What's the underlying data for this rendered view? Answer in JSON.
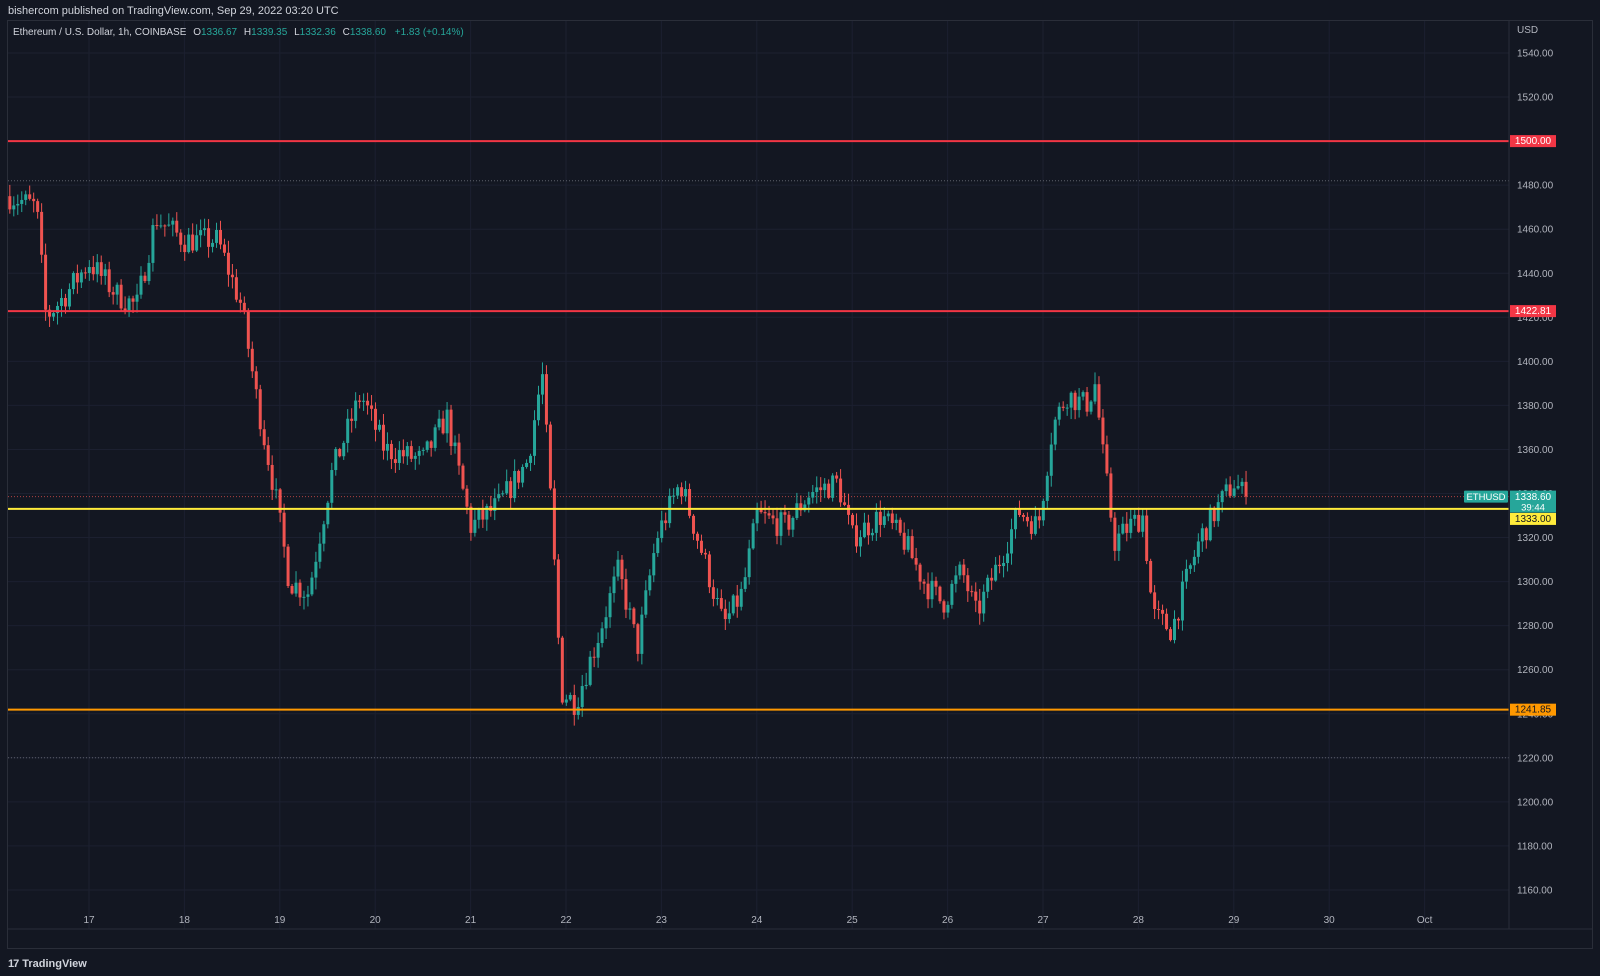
{
  "header": {
    "published": "bishercom published on TradingView.com, Sep 29, 2022 03:20 UTC"
  },
  "legend": {
    "symbol": "Ethereum / U.S. Dollar, 1h, COINBASE",
    "open_label": "O",
    "open": "1336.67",
    "high_label": "H",
    "high": "1339.35",
    "low_label": "L",
    "low": "1332.36",
    "close_label": "C",
    "close": "1338.60",
    "change": "+1.83 (+0.14%)"
  },
  "footer": {
    "brand": "TradingView",
    "logo_icon": "tradingview-logo-icon"
  },
  "colors": {
    "background": "#131722",
    "up": "#26a69a",
    "down": "#ef5350",
    "grid": "#1c2030",
    "text": "#b2b5be"
  },
  "chart_data": {
    "type": "candlestick",
    "currency": "USD",
    "ylim": [
      1145,
      1550
    ],
    "y_ticks": [
      1160,
      1180,
      1200,
      1220,
      1240,
      1260,
      1280,
      1300,
      1320,
      1340,
      1360,
      1380,
      1400,
      1420,
      1440,
      1460,
      1480,
      1500,
      1520,
      1540
    ],
    "x_ticks": [
      {
        "label": "17",
        "day": 17
      },
      {
        "label": "18",
        "day": 18
      },
      {
        "label": "19",
        "day": 19
      },
      {
        "label": "20",
        "day": 20
      },
      {
        "label": "21",
        "day": 21
      },
      {
        "label": "22",
        "day": 22
      },
      {
        "label": "23",
        "day": 23
      },
      {
        "label": "24",
        "day": 24
      },
      {
        "label": "25",
        "day": 25
      },
      {
        "label": "26",
        "day": 26
      },
      {
        "label": "27",
        "day": 27
      },
      {
        "label": "28",
        "day": 28
      },
      {
        "label": "29",
        "day": 29
      },
      {
        "label": "30",
        "day": 30
      },
      {
        "label": "Oct",
        "day": 31
      }
    ],
    "xlim_days": [
      16.16,
      32.0
    ],
    "horizontal_levels": [
      {
        "value": 1500.0,
        "label": "1500.00",
        "color": "#f23645"
      },
      {
        "value": 1422.81,
        "label": "1422.81",
        "color": "#f23645"
      },
      {
        "value": 1333.0,
        "label": "1333.00",
        "color": "#ffeb3b"
      },
      {
        "value": 1241.85,
        "label": "1241.85",
        "color": "#ff9800"
      }
    ],
    "range_lines": [
      1482,
      1220
    ],
    "last_price": {
      "symbol": "ETHUSD",
      "value": 1338.6,
      "label": "1338.60",
      "countdown": "39:44"
    },
    "price_path": [
      {
        "day": 16.17,
        "price": 1475
      },
      {
        "day": 16.45,
        "price": 1470
      },
      {
        "day": 16.55,
        "price": 1420
      },
      {
        "day": 16.75,
        "price": 1430
      },
      {
        "day": 17.0,
        "price": 1445
      },
      {
        "day": 17.3,
        "price": 1430
      },
      {
        "day": 17.5,
        "price": 1425
      },
      {
        "day": 17.7,
        "price": 1465
      },
      {
        "day": 18.0,
        "price": 1455
      },
      {
        "day": 18.35,
        "price": 1455
      },
      {
        "day": 18.6,
        "price": 1425
      },
      {
        "day": 18.75,
        "price": 1385
      },
      {
        "day": 18.95,
        "price": 1340
      },
      {
        "day": 19.1,
        "price": 1300
      },
      {
        "day": 19.3,
        "price": 1295
      },
      {
        "day": 19.55,
        "price": 1350
      },
      {
        "day": 19.85,
        "price": 1385
      },
      {
        "day": 20.1,
        "price": 1360
      },
      {
        "day": 20.5,
        "price": 1355
      },
      {
        "day": 20.75,
        "price": 1375
      },
      {
        "day": 21.0,
        "price": 1325
      },
      {
        "day": 21.3,
        "price": 1335
      },
      {
        "day": 21.6,
        "price": 1355
      },
      {
        "day": 21.75,
        "price": 1395
      },
      {
        "day": 21.85,
        "price": 1330
      },
      {
        "day": 21.95,
        "price": 1250
      },
      {
        "day": 22.1,
        "price": 1245
      },
      {
        "day": 22.3,
        "price": 1270
      },
      {
        "day": 22.55,
        "price": 1305
      },
      {
        "day": 22.75,
        "price": 1270
      },
      {
        "day": 22.95,
        "price": 1320
      },
      {
        "day": 23.2,
        "price": 1345
      },
      {
        "day": 23.45,
        "price": 1310
      },
      {
        "day": 23.65,
        "price": 1280
      },
      {
        "day": 23.85,
        "price": 1295
      },
      {
        "day": 24.0,
        "price": 1330
      },
      {
        "day": 24.3,
        "price": 1325
      },
      {
        "day": 24.55,
        "price": 1340
      },
      {
        "day": 24.85,
        "price": 1345
      },
      {
        "day": 25.0,
        "price": 1320
      },
      {
        "day": 25.3,
        "price": 1330
      },
      {
        "day": 25.55,
        "price": 1318
      },
      {
        "day": 25.75,
        "price": 1300
      },
      {
        "day": 25.95,
        "price": 1290
      },
      {
        "day": 26.15,
        "price": 1305
      },
      {
        "day": 26.3,
        "price": 1285
      },
      {
        "day": 26.55,
        "price": 1310
      },
      {
        "day": 26.75,
        "price": 1332
      },
      {
        "day": 26.95,
        "price": 1325
      },
      {
        "day": 27.1,
        "price": 1370
      },
      {
        "day": 27.25,
        "price": 1385
      },
      {
        "day": 27.45,
        "price": 1380
      },
      {
        "day": 27.55,
        "price": 1390
      },
      {
        "day": 27.62,
        "price": 1360
      },
      {
        "day": 27.75,
        "price": 1318
      },
      {
        "day": 27.9,
        "price": 1325
      },
      {
        "day": 28.05,
        "price": 1330
      },
      {
        "day": 28.15,
        "price": 1285
      },
      {
        "day": 28.35,
        "price": 1278
      },
      {
        "day": 28.5,
        "price": 1300
      },
      {
        "day": 28.65,
        "price": 1320
      },
      {
        "day": 28.85,
        "price": 1335
      },
      {
        "day": 29.0,
        "price": 1345
      },
      {
        "day": 29.12,
        "price": 1338.6
      }
    ]
  }
}
